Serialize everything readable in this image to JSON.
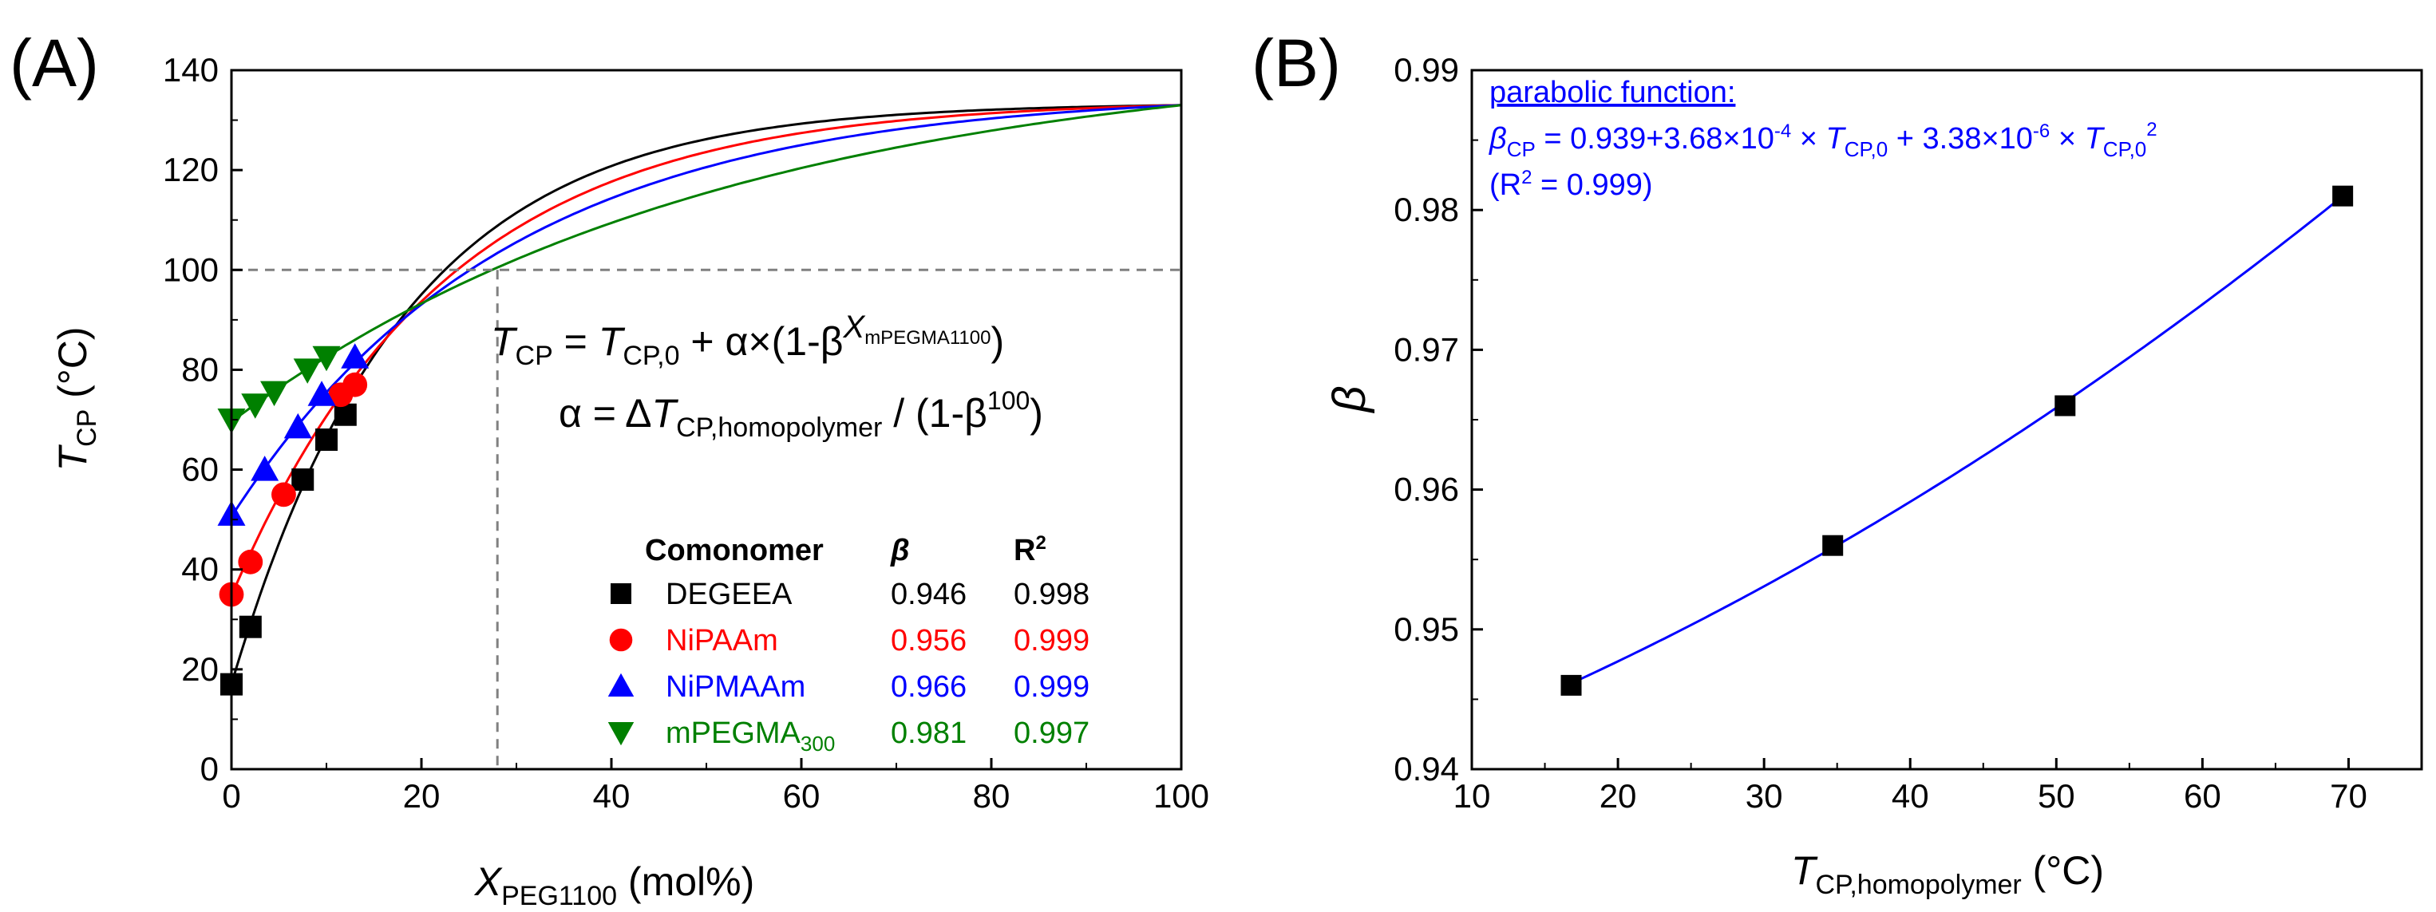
{
  "colors": {
    "black": "#000000",
    "red": "#ff0000",
    "blue": "#0000ff",
    "green": "#008000",
    "grid": "#808080"
  },
  "chart_data": [
    {
      "type": "scatter",
      "panel_label": "(A)",
      "xlabel": {
        "main": "X",
        "sub": "PEG1100",
        "unit": " (mol%)"
      },
      "ylabel": {
        "main": "T",
        "sub": "CP",
        "unit": " (°C)"
      },
      "xlim": [
        0,
        100
      ],
      "ylim": [
        0,
        140
      ],
      "xticks": [
        "0",
        "20",
        "40",
        "60",
        "80",
        "100"
      ],
      "yticks": [
        "0",
        "20",
        "40",
        "60",
        "80",
        "100",
        "120",
        "140"
      ],
      "reference_lines": {
        "horizontal_y": 100,
        "vertical_x": 28
      },
      "equation": {
        "line1": {
          "lhs_main": "T",
          "lhs_sub": "CP",
          "eq_mid": " = ",
          "t0_main": "T",
          "t0_sub": "CP,0",
          "tail_a": " + α×(1-β",
          "exp_main": "X",
          "exp_sub": "mPEGMA1100",
          "tail_b": ")"
        },
        "line2": {
          "lhs": "α = Δ",
          "t_main": "T",
          "t_sub": "CP,homopolymer",
          "rest": " / (1-β",
          "rest_sup": "100",
          "close": ")"
        }
      },
      "legend": {
        "headers": {
          "comonomer": "Comonomer",
          "beta": "β",
          "r2_main": "R",
          "r2_sup": "2"
        },
        "rows": [
          {
            "name": "DEGEEA",
            "name_sub": "",
            "beta": "0.946",
            "r2": "0.998",
            "marker": "square",
            "color": "#000000"
          },
          {
            "name": "NiPAAm",
            "name_sub": "",
            "beta": "0.956",
            "r2": "0.999",
            "marker": "circle",
            "color": "#ff0000"
          },
          {
            "name": "NiPMAAm",
            "name_sub": "",
            "beta": "0.966",
            "r2": "0.999",
            "marker": "triangle-up",
            "color": "#0000ff"
          },
          {
            "name": "mPEGMA",
            "name_sub": "300",
            "beta": "0.981",
            "r2": "0.997",
            "marker": "triangle-down",
            "color": "#008000"
          }
        ]
      },
      "series": [
        {
          "name": "DEGEEA",
          "color": "#000000",
          "marker": "square",
          "t0": 17,
          "beta": 0.946,
          "t_max": 133,
          "points": [
            {
              "x": 0,
              "y": 17
            },
            {
              "x": 2,
              "y": 28.5
            },
            {
              "x": 7.5,
              "y": 58
            },
            {
              "x": 10,
              "y": 66
            },
            {
              "x": 12,
              "y": 71
            }
          ]
        },
        {
          "name": "NiPAAm",
          "color": "#ff0000",
          "marker": "circle",
          "t0": 34.7,
          "beta": 0.956,
          "t_max": 133,
          "points": [
            {
              "x": 0,
              "y": 35
            },
            {
              "x": 2,
              "y": 41.5
            },
            {
              "x": 5.5,
              "y": 55
            },
            {
              "x": 11.5,
              "y": 75
            },
            {
              "x": 13,
              "y": 77
            }
          ]
        },
        {
          "name": "NiPMAAm",
          "color": "#0000ff",
          "marker": "triangle-up",
          "t0": 50.6,
          "beta": 0.966,
          "t_max": 133,
          "points": [
            {
              "x": 0,
              "y": 51
            },
            {
              "x": 3.5,
              "y": 60
            },
            {
              "x": 7,
              "y": 68.5
            },
            {
              "x": 9.5,
              "y": 75
            },
            {
              "x": 13,
              "y": 82.5
            }
          ]
        },
        {
          "name": "mPEGMA300",
          "color": "#008000",
          "marker": "triangle-down",
          "t0": 69.6,
          "beta": 0.981,
          "t_max": 133,
          "points": [
            {
              "x": 0,
              "y": 70
            },
            {
              "x": 2.5,
              "y": 73
            },
            {
              "x": 4.5,
              "y": 75.5
            },
            {
              "x": 8,
              "y": 80
            },
            {
              "x": 10,
              "y": 82.5
            }
          ]
        }
      ]
    },
    {
      "type": "scatter",
      "panel_label": "(B)",
      "xlabel": {
        "main": "T",
        "sub": "CP,homopolymer",
        "unit": " (°C)"
      },
      "ylabel": {
        "main": "β"
      },
      "xlim": [
        10,
        75
      ],
      "ylim": [
        0.94,
        0.99
      ],
      "xticks": [
        "10",
        "20",
        "30",
        "40",
        "50",
        "60",
        "70"
      ],
      "yticks": [
        "0.94",
        "0.95",
        "0.96",
        "0.97",
        "0.98",
        "0.99"
      ],
      "annotation": {
        "title": "parabolic function:",
        "eq": {
          "b_main": "β",
          "b_sub": "CP",
          "p1": " = 0.939+3.68×10",
          "p1_sup": "-4",
          "p2": " × ",
          "t1_main": "T",
          "t1_sub": "CP,0",
          "p3": " + 3.38×10",
          "p3_sup": "-6",
          "p4": " × ",
          "t2_main": "T",
          "t2_sub": "CP,0",
          "t2_sup": "2"
        },
        "r2": {
          "open": "(R",
          "sup": "2",
          "close": " = 0.999)"
        }
      },
      "fit": {
        "a": 0.939,
        "b": 0.000368,
        "c": 3.38e-06,
        "color": "#0000ff"
      },
      "series": [
        {
          "name": "β vs T_CP,homopolymer",
          "color": "#000000",
          "marker": "square",
          "points": [
            {
              "x": 16.8,
              "y": 0.946
            },
            {
              "x": 34.7,
              "y": 0.956
            },
            {
              "x": 50.6,
              "y": 0.966
            },
            {
              "x": 69.6,
              "y": 0.981
            }
          ]
        }
      ]
    }
  ]
}
